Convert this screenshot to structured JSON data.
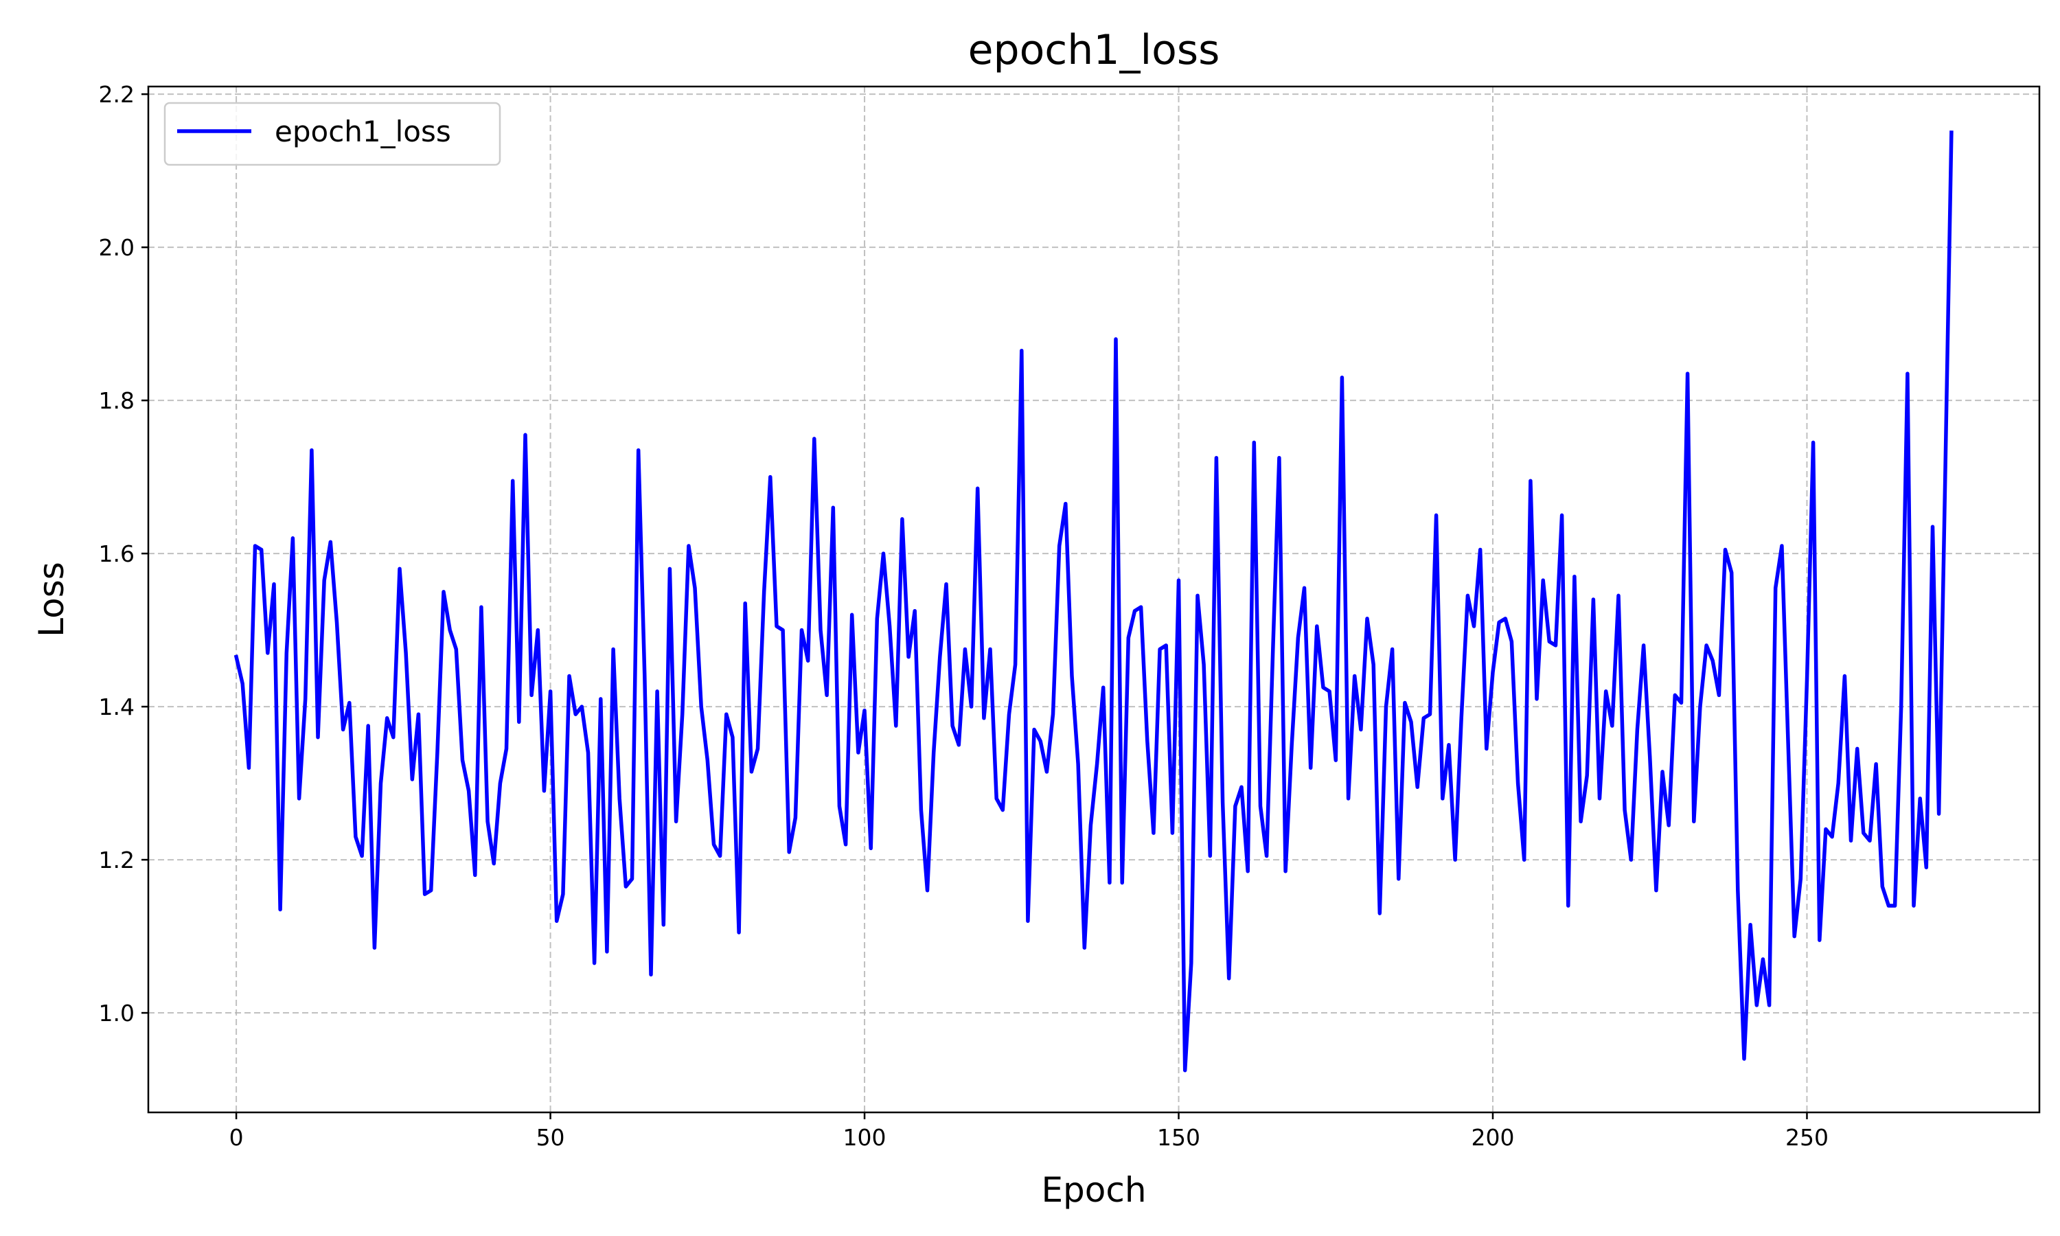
{
  "chart_data": {
    "type": "line",
    "title": "epoch1_loss",
    "xlabel": "Epoch",
    "ylabel": "Loss",
    "xlim": [
      -14,
      287
    ],
    "ylim": [
      0.87,
      2.21
    ],
    "xticks": [
      0,
      50,
      100,
      150,
      200,
      250
    ],
    "xtick_labels": [
      "0",
      "50",
      "100",
      "150",
      "200",
      "250"
    ],
    "yticks": [
      1.0,
      1.2,
      1.4,
      1.6,
      1.8,
      2.0,
      2.2
    ],
    "ytick_labels": [
      "1.0",
      "1.2",
      "1.4",
      "1.6",
      "1.8",
      "2.0",
      "2.2"
    ],
    "grid": true,
    "legend_position": "upper-left",
    "series": [
      {
        "name": "epoch1_loss",
        "color": "#0000ff",
        "x_start": 0,
        "x_step": 1,
        "values": [
          1.465,
          1.43,
          1.32,
          1.61,
          1.605,
          1.47,
          1.56,
          1.135,
          1.47,
          1.62,
          1.28,
          1.41,
          1.735,
          1.36,
          1.565,
          1.615,
          1.51,
          1.37,
          1.405,
          1.23,
          1.205,
          1.375,
          1.085,
          1.3,
          1.385,
          1.36,
          1.58,
          1.47,
          1.305,
          1.39,
          1.155,
          1.16,
          1.34,
          1.55,
          1.5,
          1.475,
          1.33,
          1.29,
          1.18,
          1.53,
          1.25,
          1.195,
          1.3,
          1.345,
          1.695,
          1.38,
          1.755,
          1.415,
          1.5,
          1.29,
          1.42,
          1.12,
          1.155,
          1.44,
          1.39,
          1.4,
          1.34,
          1.065,
          1.41,
          1.08,
          1.475,
          1.28,
          1.165,
          1.175,
          1.735,
          1.44,
          1.05,
          1.42,
          1.115,
          1.58,
          1.25,
          1.39,
          1.61,
          1.555,
          1.4,
          1.33,
          1.22,
          1.205,
          1.39,
          1.36,
          1.105,
          1.535,
          1.315,
          1.345,
          1.55,
          1.7,
          1.505,
          1.5,
          1.21,
          1.255,
          1.5,
          1.46,
          1.75,
          1.5,
          1.415,
          1.66,
          1.27,
          1.22,
          1.52,
          1.34,
          1.395,
          1.215,
          1.515,
          1.6,
          1.505,
          1.375,
          1.645,
          1.465,
          1.525,
          1.265,
          1.16,
          1.34,
          1.465,
          1.56,
          1.375,
          1.35,
          1.475,
          1.4,
          1.685,
          1.385,
          1.475,
          1.28,
          1.265,
          1.39,
          1.455,
          1.865,
          1.12,
          1.37,
          1.355,
          1.315,
          1.39,
          1.61,
          1.665,
          1.44,
          1.325,
          1.085,
          1.245,
          1.325,
          1.425,
          1.17,
          1.88,
          1.17,
          1.49,
          1.525,
          1.53,
          1.355,
          1.235,
          1.475,
          1.48,
          1.235,
          1.565,
          0.925,
          1.065,
          1.545,
          1.455,
          1.205,
          1.725,
          1.275,
          1.045,
          1.27,
          1.295,
          1.185,
          1.745,
          1.27,
          1.205,
          1.475,
          1.725,
          1.185,
          1.35,
          1.49,
          1.555,
          1.32,
          1.505,
          1.425,
          1.42,
          1.33,
          1.83,
          1.28,
          1.44,
          1.37,
          1.515,
          1.455,
          1.13,
          1.4,
          1.475,
          1.175,
          1.405,
          1.38,
          1.295,
          1.385,
          1.39,
          1.65,
          1.28,
          1.35,
          1.2,
          1.385,
          1.545,
          1.505,
          1.605,
          1.345,
          1.445,
          1.51,
          1.515,
          1.485,
          1.3,
          1.2,
          1.695,
          1.41,
          1.565,
          1.485,
          1.48,
          1.65,
          1.14,
          1.57,
          1.25,
          1.31,
          1.54,
          1.28,
          1.42,
          1.375,
          1.545,
          1.265,
          1.2,
          1.37,
          1.48,
          1.335,
          1.16,
          1.315,
          1.245,
          1.415,
          1.405,
          1.835,
          1.25,
          1.4,
          1.48,
          1.46,
          1.415,
          1.605,
          1.575,
          1.16,
          0.94,
          1.115,
          1.01,
          1.07,
          1.01,
          1.555,
          1.61,
          1.355,
          1.1,
          1.175,
          1.435,
          1.745,
          1.095,
          1.24,
          1.23,
          1.3,
          1.44,
          1.225,
          1.345,
          1.235,
          1.225,
          1.325,
          1.165,
          1.14,
          1.14,
          1.4,
          1.835,
          1.14,
          1.28,
          1.19,
          1.635,
          1.26,
          1.7,
          2.15
        ]
      }
    ]
  }
}
